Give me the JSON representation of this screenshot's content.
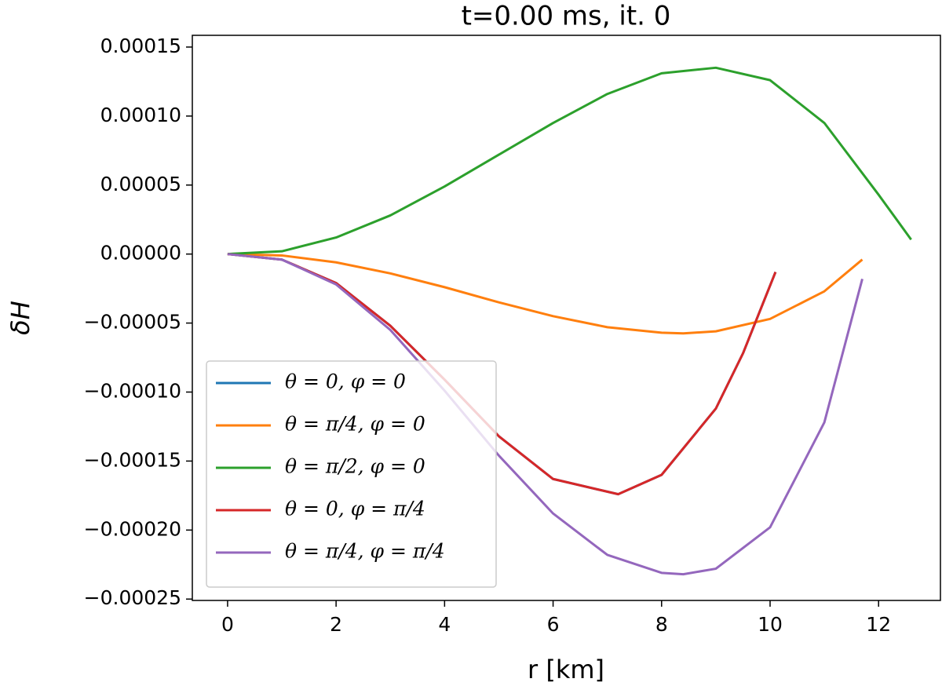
{
  "chart_data": {
    "type": "line",
    "title": "t=0.00 ms, it. 0",
    "x_label": "r [km]",
    "y_label": "δH",
    "xlim": [
      -0.65,
      13.14
    ],
    "ylim": [
      -0.000251,
      0.0001585
    ],
    "xticks": [
      0,
      2,
      4,
      6,
      8,
      10,
      12
    ],
    "yticks": [
      {
        "value": -0.00025,
        "label": "−0.00025"
      },
      {
        "value": -0.0002,
        "label": "−0.00020"
      },
      {
        "value": -0.00015,
        "label": "−0.00015"
      },
      {
        "value": -0.0001,
        "label": "−0.00010"
      },
      {
        "value": -5e-05,
        "label": "−0.00005"
      },
      {
        "value": 0,
        "label": "0.00000"
      },
      {
        "value": 5e-05,
        "label": "0.00005"
      },
      {
        "value": 0.0001,
        "label": "0.00010"
      },
      {
        "value": 0.00015,
        "label": "0.00015"
      }
    ],
    "legend": "lower left",
    "series": [
      {
        "name": "θ = 0, φ = 0",
        "color": "#1f77b4",
        "x": [
          0,
          1,
          2,
          3,
          4,
          5,
          6,
          7.2,
          8,
          9,
          9.5,
          10.1
        ],
        "values": [
          0,
          -4e-06,
          -2.1e-05,
          -5.2e-05,
          -9.1e-05,
          -0.000132,
          -0.000163,
          -0.000174,
          -0.00016,
          -0.000112,
          -7.2e-05,
          -1.3e-05
        ]
      },
      {
        "name": "θ = π/4, φ = 0",
        "color": "#ff7f0e",
        "x": [
          0,
          1,
          2,
          3,
          4,
          5,
          6,
          7,
          8,
          8.4,
          9,
          10,
          11,
          11.7
        ],
        "values": [
          0,
          -1e-06,
          -6e-06,
          -1.4e-05,
          -2.4e-05,
          -3.5e-05,
          -4.5e-05,
          -5.3e-05,
          -5.7e-05,
          -5.75e-05,
          -5.6e-05,
          -4.7e-05,
          -2.7e-05,
          -4e-06
        ]
      },
      {
        "name": "θ = π/2, φ = 0",
        "color": "#2ca02c",
        "x": [
          0,
          1,
          2,
          3,
          4,
          5,
          6,
          7,
          8,
          9,
          10,
          11,
          12,
          12.6
        ],
        "values": [
          0,
          2e-06,
          1.2e-05,
          2.8e-05,
          4.9e-05,
          7.2e-05,
          9.5e-05,
          0.000116,
          0.000131,
          0.000135,
          0.000126,
          9.5e-05,
          4.3e-05,
          1.05e-05
        ]
      },
      {
        "name": "θ = 0, φ = π/4",
        "color": "#d62728",
        "x": [
          0,
          1,
          2,
          3,
          4,
          5,
          6,
          7.2,
          8,
          9,
          9.5,
          10.1
        ],
        "values": [
          0,
          -4e-06,
          -2.1e-05,
          -5.2e-05,
          -9.1e-05,
          -0.000132,
          -0.000163,
          -0.000174,
          -0.00016,
          -0.000112,
          -7.2e-05,
          -1.3e-05
        ]
      },
      {
        "name": "θ = π/4, φ = π/4",
        "color": "#9467bd",
        "x": [
          0,
          1,
          2,
          3,
          4,
          5,
          6,
          7,
          8,
          8.4,
          9,
          10,
          11,
          11.7
        ],
        "values": [
          0,
          -4e-06,
          -2.2e-05,
          -5.5e-05,
          -9.9e-05,
          -0.000146,
          -0.000188,
          -0.000218,
          -0.000231,
          -0.000232,
          -0.000228,
          -0.000198,
          -0.000122,
          -1.8e-05
        ]
      }
    ]
  }
}
